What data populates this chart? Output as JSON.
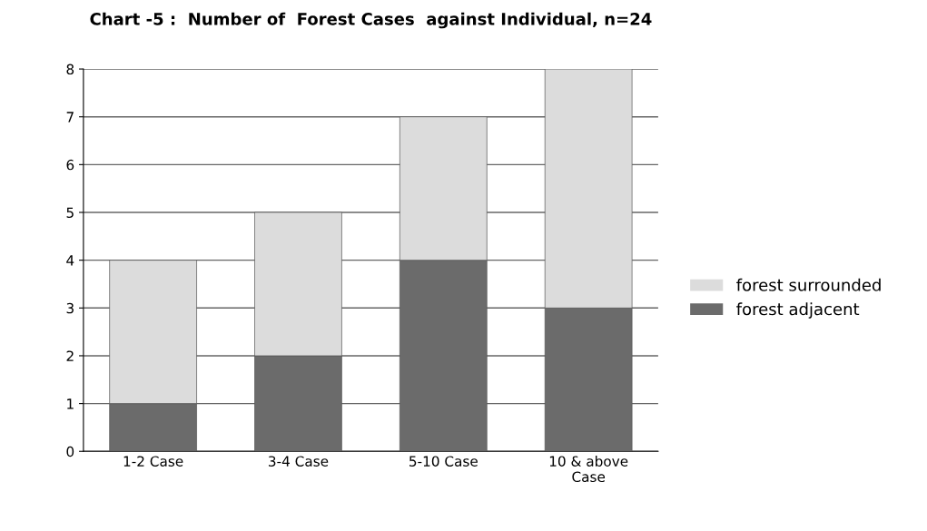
{
  "chart_data": {
    "type": "bar",
    "title": "Chart -5 :  Number of  Forest Cases  against Individual, n=24",
    "categories": [
      "1-2 Case",
      "3-4 Case",
      "5-10 Case",
      "10 & above\nCase"
    ],
    "series": [
      {
        "name": "forest adjacent",
        "color": "#6b6b6b",
        "values": [
          1,
          2,
          4,
          3
        ]
      },
      {
        "name": "forest surrounded",
        "color": "#dcdcdc",
        "values": [
          3,
          3,
          3,
          5
        ]
      }
    ],
    "stacked": true,
    "ylim": [
      0,
      8
    ],
    "yticks": [
      0,
      1,
      2,
      3,
      4,
      5,
      6,
      7,
      8
    ],
    "grid": "y",
    "legend": "right"
  }
}
